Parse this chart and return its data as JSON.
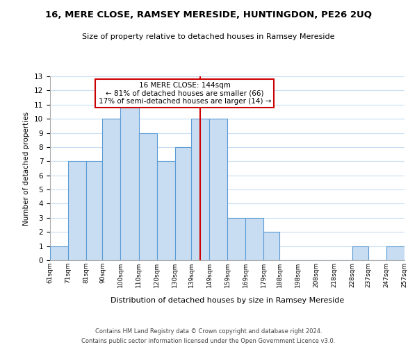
{
  "title": "16, MERE CLOSE, RAMSEY MERESIDE, HUNTINGDON, PE26 2UQ",
  "subtitle": "Size of property relative to detached houses in Ramsey Mereside",
  "xlabel": "Distribution of detached houses by size in Ramsey Mereside",
  "ylabel": "Number of detached properties",
  "bin_edges": [
    61,
    71,
    81,
    90,
    100,
    110,
    120,
    130,
    139,
    149,
    159,
    169,
    179,
    188,
    198,
    208,
    218,
    228,
    237,
    247,
    257
  ],
  "bin_labels": [
    "61sqm",
    "71sqm",
    "81sqm",
    "90sqm",
    "100sqm",
    "110sqm",
    "120sqm",
    "130sqm",
    "139sqm",
    "149sqm",
    "159sqm",
    "169sqm",
    "179sqm",
    "188sqm",
    "198sqm",
    "208sqm",
    "218sqm",
    "228sqm",
    "237sqm",
    "247sqm",
    "257sqm"
  ],
  "counts": [
    1,
    7,
    7,
    10,
    11,
    9,
    7,
    8,
    10,
    10,
    3,
    3,
    2,
    0,
    0,
    0,
    0,
    1,
    0,
    1
  ],
  "bar_color": "#c8ddf2",
  "bar_edge_color": "#5b9bd5",
  "marker_value": 144,
  "marker_color": "#cc0000",
  "annotation_title": "16 MERE CLOSE: 144sqm",
  "annotation_line1": "← 81% of detached houses are smaller (66)",
  "annotation_line2": "17% of semi-detached houses are larger (14) →",
  "annotation_box_edge": "#cc0000",
  "ylim": [
    0,
    13
  ],
  "yticks": [
    0,
    1,
    2,
    3,
    4,
    5,
    6,
    7,
    8,
    9,
    10,
    11,
    12,
    13
  ],
  "footer_line1": "Contains HM Land Registry data © Crown copyright and database right 2024.",
  "footer_line2": "Contains public sector information licensed under the Open Government Licence v3.0.",
  "bg_color": "#ffffff",
  "grid_color": "#c8ddf2"
}
